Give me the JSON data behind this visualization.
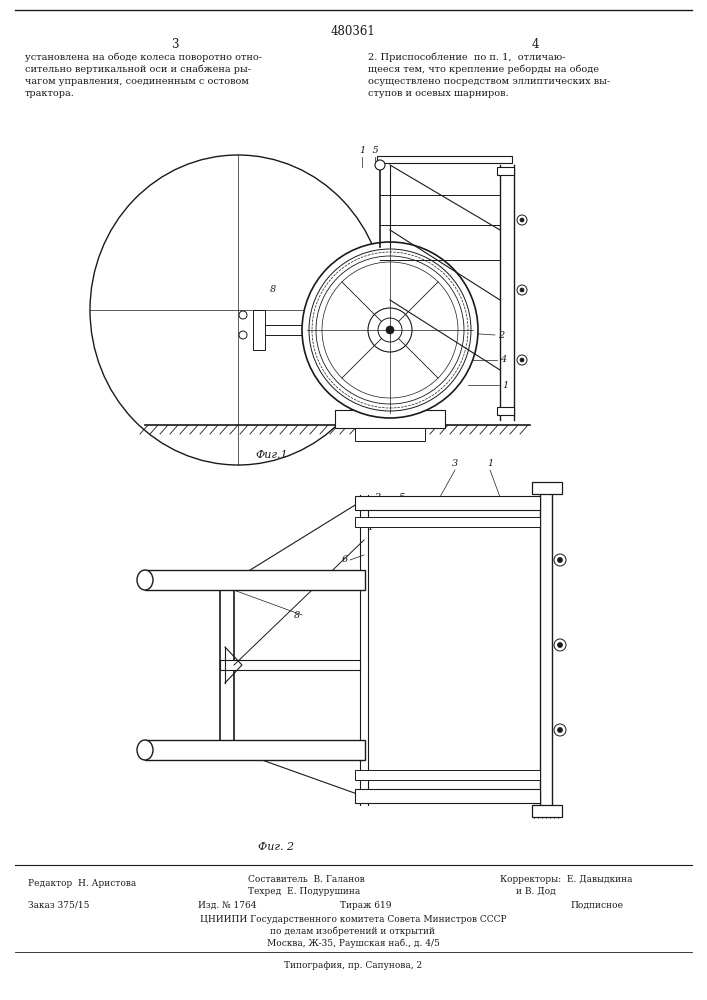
{
  "patent_number": "480361",
  "page_left": "3",
  "page_right": "4",
  "top_text_left": "установлена на ободе колеса поворотно отно-\nсительно вертикальной оси и снабжена ры-\nчагом управления, соединенным с остовом\nтрактора.",
  "top_text_right": "2. Приспособление  по п. 1,  отличаю-\nщееся тем, что крепление реборды на ободе\nосуществлено посредством эллиптических вы-\nступов и осевых шарниров.",
  "fig1_caption": "Фиг.1",
  "fig2_caption": "Фиг. 2",
  "editor": "Редактор  Н. Аристова",
  "composer": "Составитель  В. Галанов",
  "techred": "Техред  Е. Подурушина",
  "correctors": "Корректоры:  Е. Давыдкина\n                      и В. Дод",
  "order": "Заказ 375/15",
  "edition": "Изд. № 1764",
  "circulation": "Тираж 619",
  "subscription": "Подписное",
  "org_line1": "ЦНИИПИ Государственного комитета Совета Министров СССР",
  "org_line2": "по делам изобретений и открытий",
  "org_line3": "Москва, Ж-35, Раушская наб., д. 4/5",
  "typography": "Типография, пр. Сапунова, 2",
  "bg_color": "#ffffff",
  "lc": "#1a1a1a"
}
